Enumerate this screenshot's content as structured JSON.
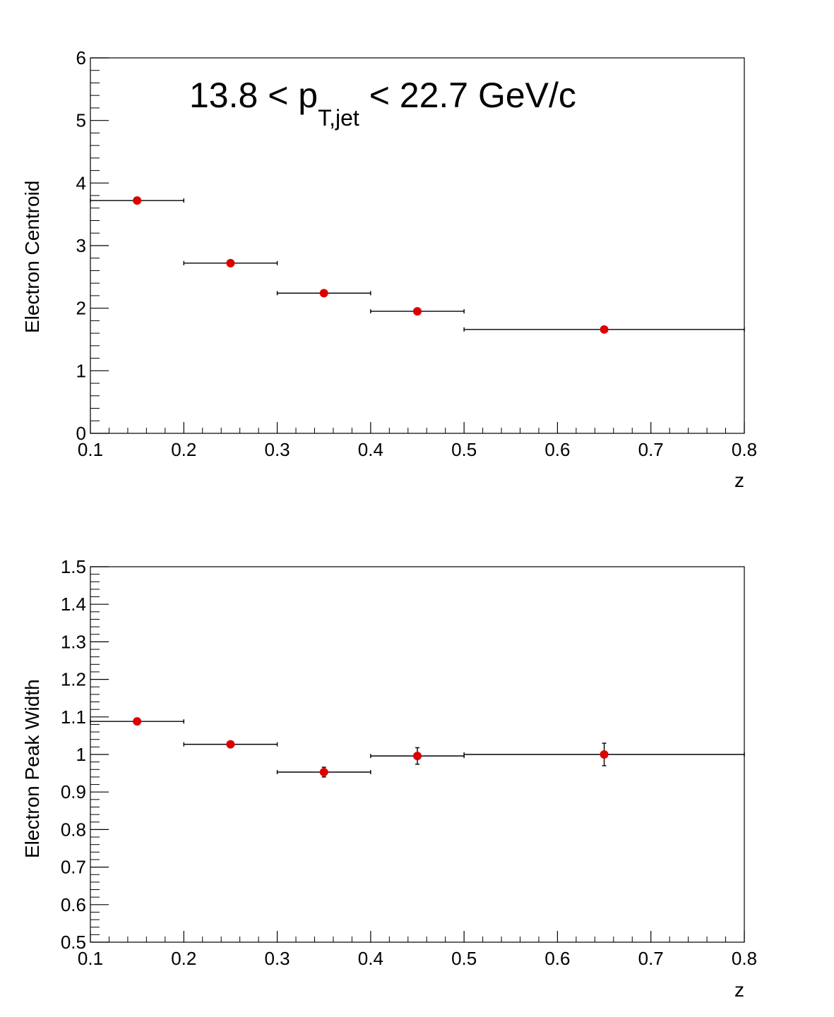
{
  "chart_data": [
    {
      "type": "scatter",
      "title": "",
      "annotation": {
        "prefix": "13.8 < p",
        "subscript": "T,jet",
        "suffix": " < 22.7 GeV/c"
      },
      "xlabel": "z",
      "ylabel": "Electron Centroid",
      "xlim": [
        0.1,
        0.8
      ],
      "ylim": [
        0,
        6
      ],
      "x_ticks": [
        "0.1",
        "0.2",
        "0.3",
        "0.4",
        "0.5",
        "0.6",
        "0.7",
        "0.8"
      ],
      "y_ticks": [
        "0",
        "1",
        "2",
        "3",
        "4",
        "5",
        "6"
      ],
      "marker_color": "#dd0000",
      "points": [
        {
          "x": 0.15,
          "y": 3.72,
          "xlo": 0.1,
          "xhi": 0.2,
          "yerr": 0.01
        },
        {
          "x": 0.25,
          "y": 2.72,
          "xlo": 0.2,
          "xhi": 0.3,
          "yerr": 0.01
        },
        {
          "x": 0.35,
          "y": 2.24,
          "xlo": 0.3,
          "xhi": 0.4,
          "yerr": 0.01
        },
        {
          "x": 0.45,
          "y": 1.95,
          "xlo": 0.4,
          "xhi": 0.5,
          "yerr": 0.01
        },
        {
          "x": 0.65,
          "y": 1.66,
          "xlo": 0.5,
          "xhi": 0.8,
          "yerr": 0.01
        }
      ]
    },
    {
      "type": "scatter",
      "title": "",
      "xlabel": "z",
      "ylabel": "Electron Peak Width",
      "xlim": [
        0.1,
        0.8
      ],
      "ylim": [
        0.5,
        1.5
      ],
      "x_ticks": [
        "0.1",
        "0.2",
        "0.3",
        "0.4",
        "0.5",
        "0.6",
        "0.7",
        "0.8"
      ],
      "y_ticks": [
        "0.5",
        "0.6",
        "0.7",
        "0.8",
        "0.9",
        "1",
        "1.1",
        "1.2",
        "1.3",
        "1.4",
        "1.5"
      ],
      "marker_color": "#dd0000",
      "points": [
        {
          "x": 0.15,
          "y": 1.088,
          "xlo": 0.1,
          "xhi": 0.2,
          "yerr": 0.003
        },
        {
          "x": 0.25,
          "y": 1.027,
          "xlo": 0.2,
          "xhi": 0.3,
          "yerr": 0.004
        },
        {
          "x": 0.35,
          "y": 0.953,
          "xlo": 0.3,
          "xhi": 0.4,
          "yerr": 0.013
        },
        {
          "x": 0.45,
          "y": 0.996,
          "xlo": 0.4,
          "xhi": 0.5,
          "yerr": 0.022
        },
        {
          "x": 0.65,
          "y": 1.0,
          "xlo": 0.5,
          "xhi": 0.8,
          "yerr": 0.03
        }
      ]
    }
  ]
}
